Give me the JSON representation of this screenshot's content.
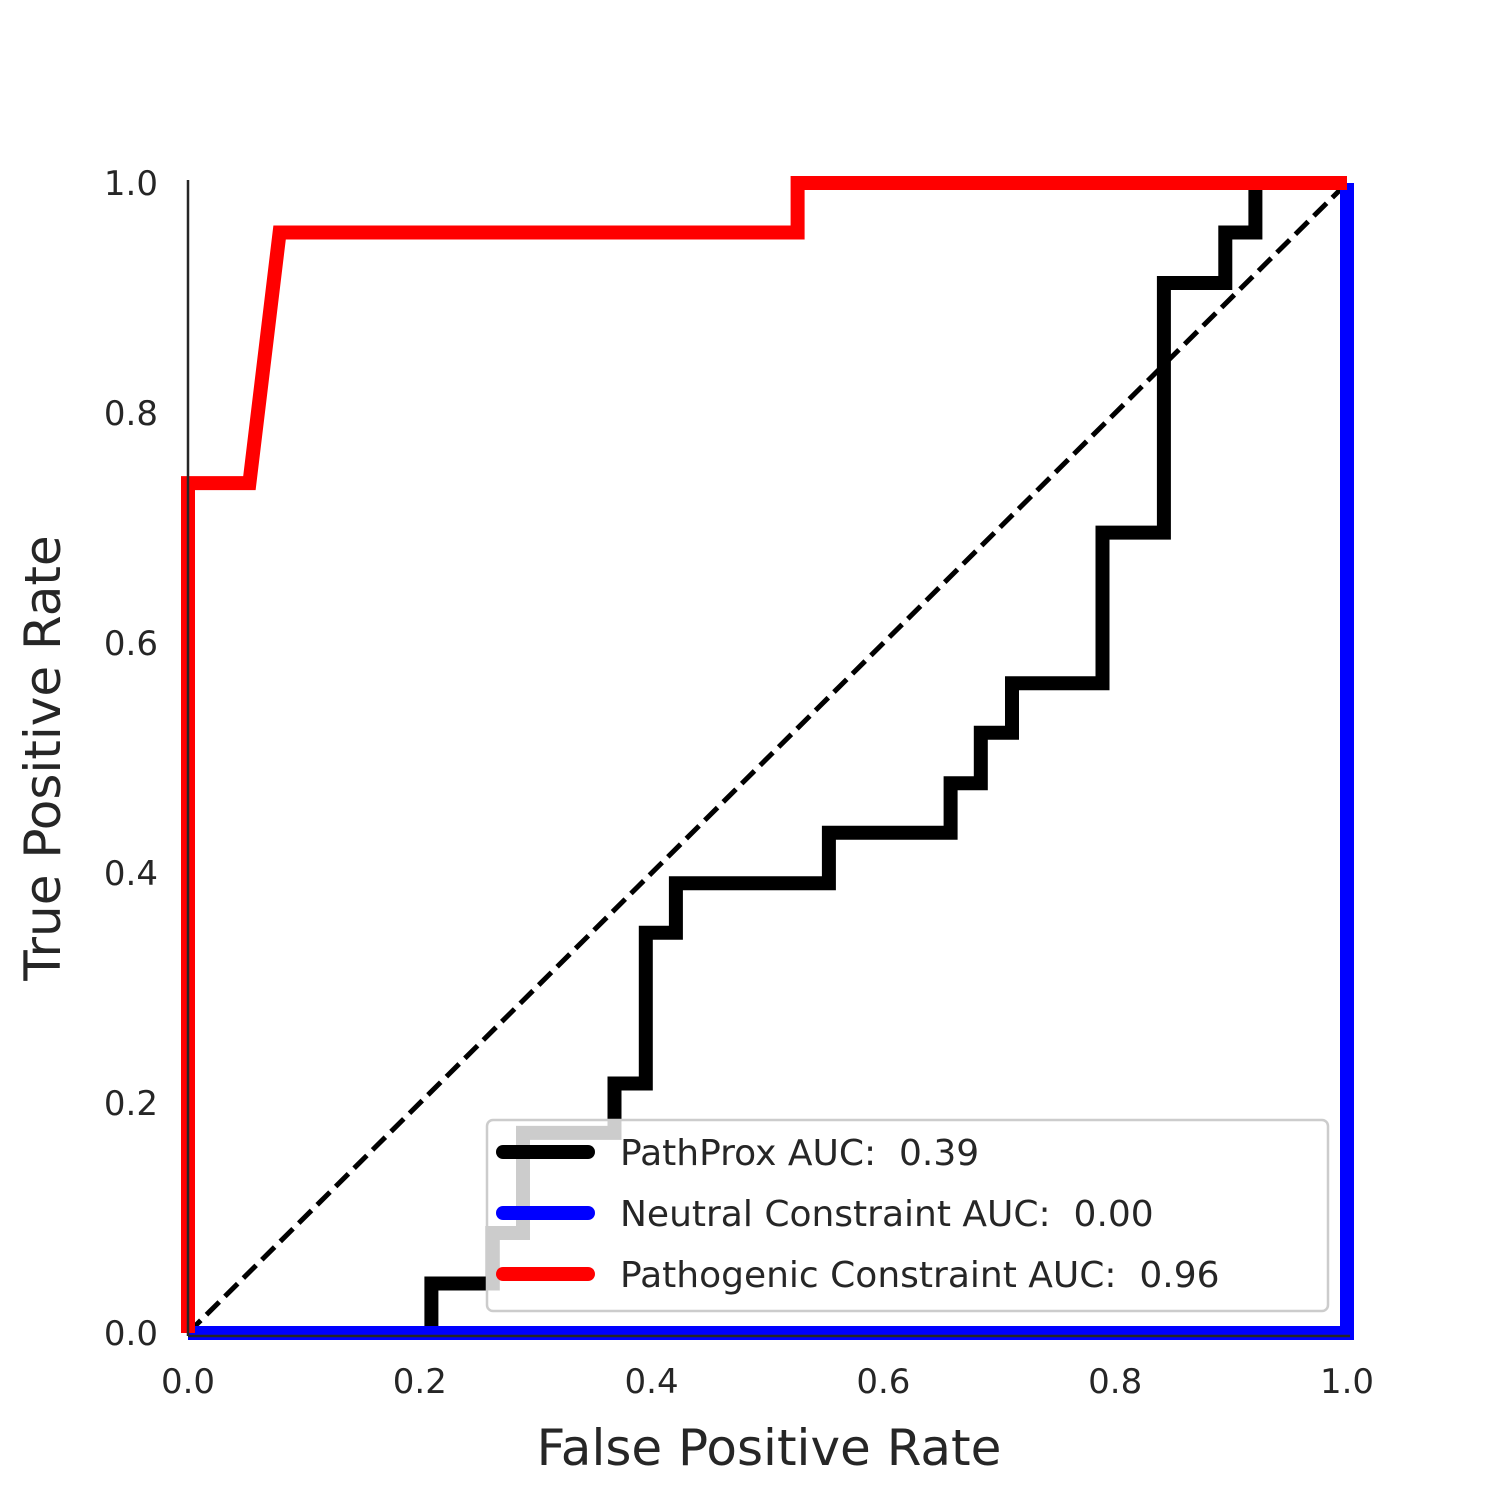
{
  "chart_data": {
    "type": "line",
    "title": "",
    "xlabel": "False Positive Rate",
    "ylabel": "True Positive Rate",
    "xlim": [
      0,
      1
    ],
    "ylim": [
      0,
      1
    ],
    "xticks": [
      "0.0",
      "0.2",
      "0.4",
      "0.6",
      "0.8",
      "1.0"
    ],
    "yticks": [
      "0.0",
      "0.2",
      "0.4",
      "0.6",
      "0.8",
      "1.0"
    ],
    "grid": false,
    "legend_position": "lower-right",
    "diagonal_reference": {
      "x": [
        0,
        1
      ],
      "y": [
        0,
        1
      ],
      "color": "#000000",
      "style": "dashed"
    },
    "series": [
      {
        "name": "PathProx AUC:  0.39",
        "color": "#000000",
        "x": [
          0.0,
          0.21,
          0.21,
          0.263,
          0.263,
          0.289,
          0.289,
          0.368,
          0.368,
          0.395,
          0.395,
          0.421,
          0.421,
          0.553,
          0.553,
          0.658,
          0.658,
          0.684,
          0.684,
          0.711,
          0.711,
          0.789,
          0.789,
          0.842,
          0.842,
          0.895,
          0.895,
          0.921,
          0.921,
          1.0
        ],
        "y": [
          0.0,
          0.0,
          0.043,
          0.043,
          0.087,
          0.087,
          0.174,
          0.174,
          0.217,
          0.217,
          0.348,
          0.348,
          0.391,
          0.391,
          0.435,
          0.435,
          0.478,
          0.478,
          0.522,
          0.522,
          0.565,
          0.565,
          0.696,
          0.696,
          0.913,
          0.913,
          0.957,
          0.957,
          1.0,
          1.0
        ]
      },
      {
        "name": "Neutral Constraint AUC:  0.00",
        "color": "#0000ff",
        "x": [
          0.0,
          1.0,
          1.0
        ],
        "y": [
          0.0,
          0.0,
          1.0
        ]
      },
      {
        "name": "Pathogenic Constraint AUC:  0.96",
        "color": "#ff0000",
        "x": [
          0.0,
          0.0,
          0.053,
          0.079,
          0.526,
          0.526,
          1.0
        ],
        "y": [
          0.0,
          0.739,
          0.739,
          0.957,
          0.957,
          1.0,
          1.0
        ]
      }
    ]
  }
}
